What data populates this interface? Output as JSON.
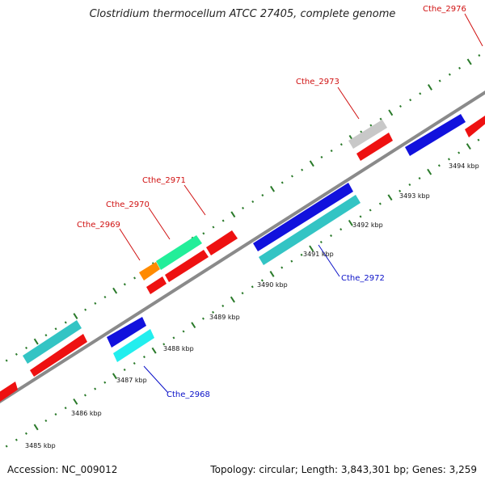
{
  "title": "Clostridium thermocellum ATCC 27405, complete genome",
  "accession": "Accession: NC_009012",
  "summary": "Topology: circular; Length: 3,843,301 bp; Genes: 3,259",
  "colors": {
    "backbone": "#8a8a8a",
    "tick": "#2a7a2a",
    "forward_label": "#d01010",
    "reverse_label": "#0a10c8"
  },
  "kbp_ticks": [
    "3485 kbp",
    "3486 kbp",
    "3487 kbp",
    "3488 kbp",
    "3489 kbp",
    "3490 kbp",
    "3491 kbp",
    "3492 kbp",
    "3493 kbp",
    "3494 kbp"
  ],
  "gene_labels": {
    "cthe_2968": "Cthe_2968",
    "cthe_2969": "Cthe_2969",
    "cthe_2970": "Cthe_2970",
    "cthe_2971": "Cthe_2971",
    "cthe_2972": "Cthe_2972",
    "cthe_2973": "Cthe_2973",
    "cthe_2976": "Cthe_2976"
  },
  "gene_colors": {
    "red": "#ee1111",
    "teal": "#33c4c4",
    "cyan": "#22eeee",
    "blue": "#1111dd",
    "mint": "#22ee99",
    "orange": "#ff8a00",
    "gray": "#c8c8c8"
  }
}
